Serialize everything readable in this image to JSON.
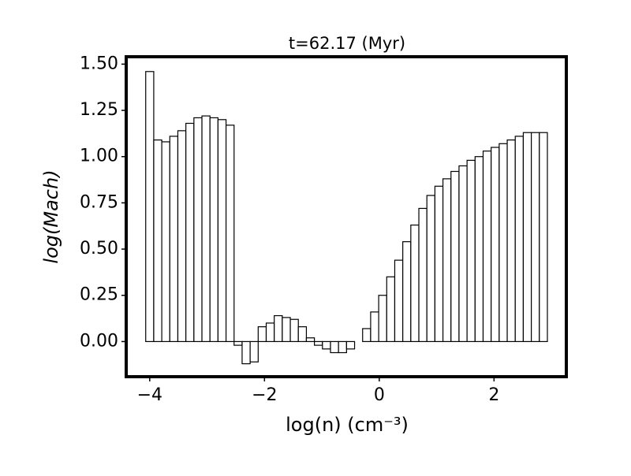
{
  "chart_data": {
    "type": "histogram",
    "title": "t=62.17 (Myr)",
    "xlabel": "log(n) (cm⁻³)",
    "ylabel": "log(Mach)",
    "bins": [
      -4.07,
      -3.93,
      -3.79,
      -3.65,
      -3.51,
      -3.37,
      -3.23,
      -3.09,
      -2.95,
      -2.81,
      -2.67,
      -2.53,
      -2.39,
      -2.25,
      -2.11,
      -1.97,
      -1.83,
      -1.69,
      -1.55,
      -1.41,
      -1.27,
      -1.13,
      -0.99,
      -0.85,
      -0.71,
      -0.57,
      -0.43,
      -0.29,
      -0.15,
      -0.01,
      0.13,
      0.27,
      0.41,
      0.55,
      0.69,
      0.83,
      0.97,
      1.11,
      1.25,
      1.39,
      1.53,
      1.67,
      1.81,
      1.95,
      2.09,
      2.23,
      2.37,
      2.51,
      2.65,
      2.79,
      2.93
    ],
    "values": [
      1.46,
      1.09,
      1.08,
      1.11,
      1.14,
      1.18,
      1.21,
      1.22,
      1.21,
      1.2,
      1.17,
      -0.02,
      -0.12,
      -0.11,
      0.08,
      0.1,
      0.14,
      0.13,
      0.12,
      0.08,
      0.02,
      -0.02,
      -0.04,
      -0.06,
      -0.06,
      -0.04,
      0.0,
      0.07,
      0.16,
      0.25,
      0.35,
      0.44,
      0.54,
      0.63,
      0.72,
      0.79,
      0.84,
      0.88,
      0.92,
      0.95,
      0.98,
      1.0,
      1.03,
      1.05,
      1.07,
      1.09,
      1.11,
      1.13,
      1.13,
      1.13
    ],
    "color": "#ffffff",
    "xlim": [
      -4.41,
      3.26
    ],
    "ylim": [
      -0.19,
      1.54
    ],
    "xticks": [
      {
        "value": -4,
        "label": "−4"
      },
      {
        "value": -2,
        "label": "−2"
      },
      0,
      2
    ],
    "yticks": [
      {
        "value": 0,
        "label": "0.00"
      },
      {
        "value": 0.25,
        "label": "0.25"
      },
      {
        "value": 0.5,
        "label": "0.50"
      },
      {
        "value": 0.75,
        "label": "0.75"
      },
      {
        "value": 1,
        "label": "1.00"
      },
      {
        "value": 1.25,
        "label": "1.25"
      },
      {
        "value": 1.5,
        "label": "1.50"
      }
    ]
  }
}
